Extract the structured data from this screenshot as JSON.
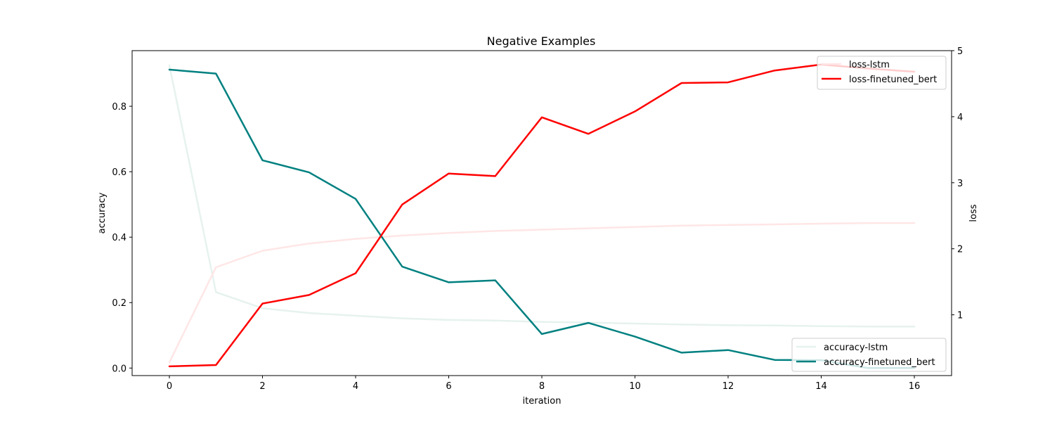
{
  "chart_data": {
    "type": "line",
    "title": "Negative Examples",
    "xlabel": "iteration",
    "ylabel_left": "accuracy",
    "ylabel_right": "loss",
    "x": [
      0,
      1,
      2,
      3,
      4,
      5,
      6,
      7,
      8,
      9,
      10,
      11,
      12,
      13,
      14,
      15,
      16
    ],
    "xlim": [
      -0.8,
      16.8
    ],
    "ylim_left": [
      -0.023,
      0.97
    ],
    "ylim_right": [
      0.08,
      5.0
    ],
    "xticks": [
      0,
      2,
      4,
      6,
      8,
      10,
      12,
      14,
      16
    ],
    "yticks_left": [
      0.0,
      0.2,
      0.4,
      0.6,
      0.8
    ],
    "yticks_right": [
      1,
      2,
      3,
      4,
      5
    ],
    "grid": false,
    "left_axis_series": [
      {
        "name": "accuracy-lstm",
        "color": "#e6f2ee",
        "values": [
          0.925,
          0.232,
          0.183,
          0.168,
          0.16,
          0.152,
          0.147,
          0.145,
          0.141,
          0.139,
          0.136,
          0.133,
          0.131,
          0.13,
          0.128,
          0.127,
          0.127
        ]
      },
      {
        "name": "accuracy-finetuned_bert",
        "color": "#008080",
        "values": [
          0.912,
          0.9,
          0.635,
          0.598,
          0.517,
          0.31,
          0.262,
          0.268,
          0.104,
          0.138,
          0.096,
          0.047,
          0.055,
          0.025,
          0.024,
          0.0,
          0.0
        ]
      }
    ],
    "right_axis_series": [
      {
        "name": "loss-lstm",
        "color": "#ffe6e6",
        "values": [
          0.28,
          1.72,
          1.97,
          2.08,
          2.15,
          2.2,
          2.24,
          2.27,
          2.29,
          2.31,
          2.33,
          2.35,
          2.36,
          2.37,
          2.38,
          2.39,
          2.39
        ]
      },
      {
        "name": "loss-finetuned_bert",
        "color": "#ff0000",
        "values": [
          0.22,
          0.24,
          1.17,
          1.3,
          1.63,
          2.67,
          3.14,
          3.1,
          3.99,
          3.74,
          4.08,
          4.51,
          4.52,
          4.7,
          4.79,
          4.73,
          4.68
        ]
      }
    ],
    "legend_right_placement": "upper right",
    "legend_left_placement": "lower right"
  }
}
